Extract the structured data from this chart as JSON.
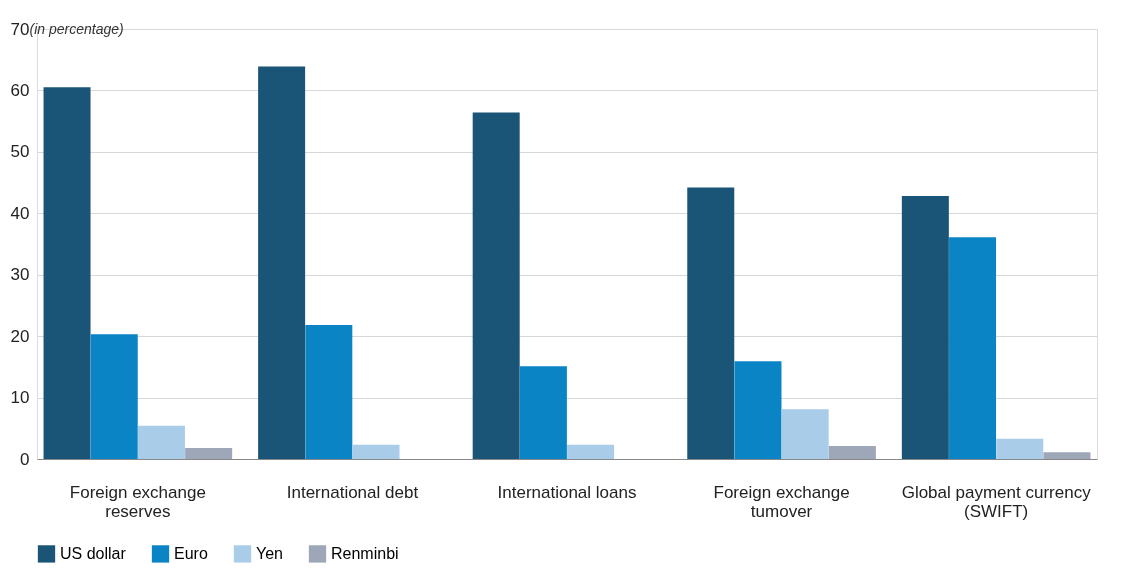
{
  "chart_data": {
    "type": "bar",
    "ylabel": "(in percentage)",
    "categories": [
      "Foreign exchange reserves",
      "International debt",
      "International loans",
      "Foreign exchange tumover",
      "Global payment currency (SWIFT)"
    ],
    "series": [
      {
        "name": "US dollar",
        "color": "#1a5577",
        "values": [
          60.5,
          63.9,
          56.4,
          44.2,
          42.8
        ]
      },
      {
        "name": "Euro",
        "color": "#0a84c4",
        "values": [
          20.3,
          21.8,
          15.1,
          15.9,
          36.1
        ]
      },
      {
        "name": "Yen",
        "color": "#a9cce8",
        "values": [
          5.4,
          2.3,
          2.3,
          8.1,
          3.3
        ]
      },
      {
        "name": "Renminbi",
        "color": "#9ea7b8",
        "values": [
          1.8,
          null,
          null,
          2.1,
          1.1
        ]
      }
    ],
    "ylim": [
      0,
      70
    ],
    "yticks": [
      0,
      10,
      20,
      30,
      40,
      50,
      60,
      70
    ],
    "grid": "y",
    "legend": "bottom left"
  }
}
